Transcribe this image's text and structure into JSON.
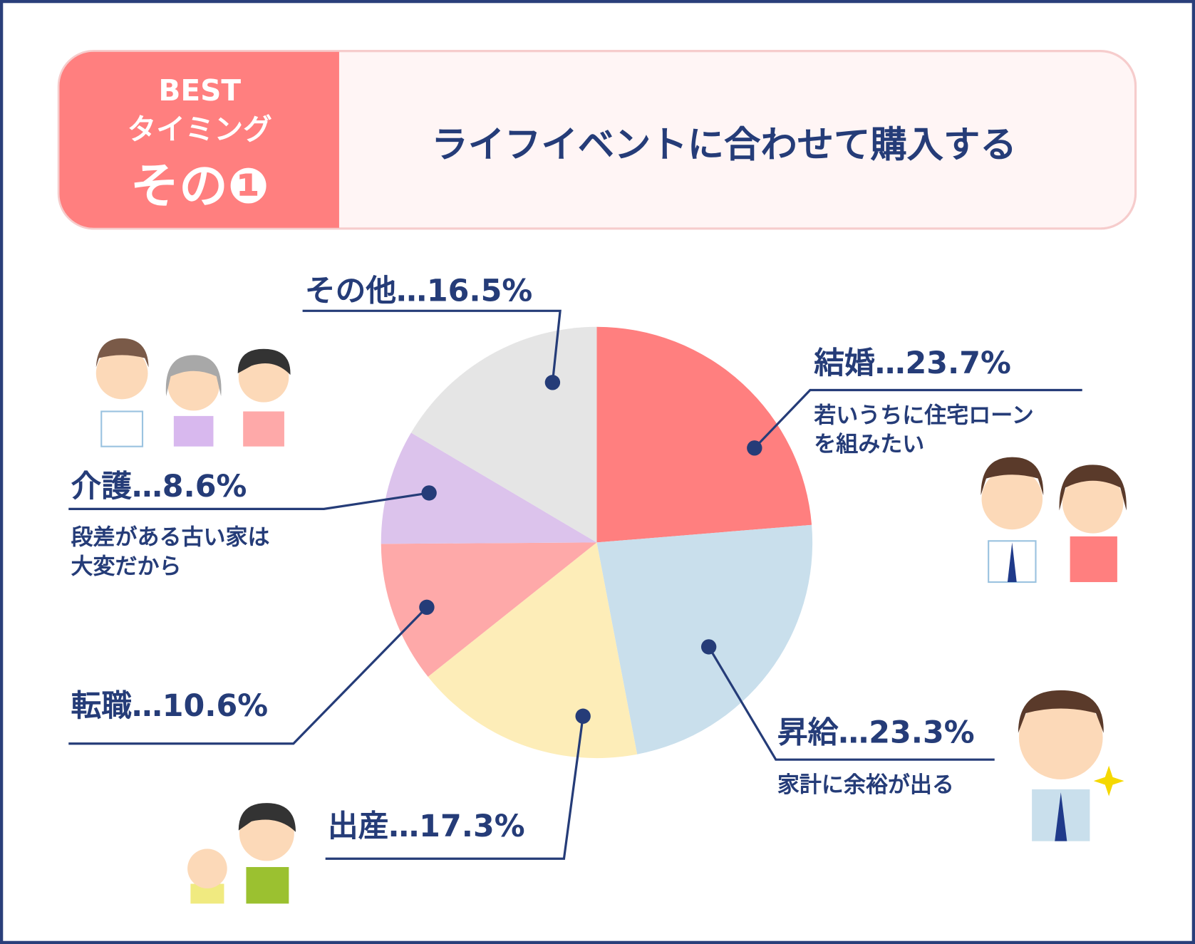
{
  "header": {
    "badge_top": "BEST",
    "badge_middle": "タイミング",
    "badge_bottom": "その❶",
    "title": "ライフイベントに合わせて購入する"
  },
  "chart_data": {
    "type": "pie",
    "categories": [
      "結婚",
      "昇給",
      "出産",
      "転職",
      "介護",
      "その他"
    ],
    "values": [
      23.7,
      23.3,
      17.3,
      10.6,
      8.6,
      16.5
    ],
    "value_labels": [
      "…23.7%",
      "…23.3%",
      "…17.3%",
      "…10.6%",
      "…8.6%",
      "…16.5%"
    ],
    "colors": [
      "#ff7f7f",
      "#c9dfec",
      "#fdedb8",
      "#fea9a9",
      "#dcc3ec",
      "#e5e5e5"
    ],
    "notes": [
      [
        "若いうちに住宅ローン",
        "を組みたい"
      ],
      [
        "家計に余裕が出る"
      ],
      null,
      null,
      [
        "段差がある古い家は",
        "大変だから"
      ],
      null
    ]
  }
}
